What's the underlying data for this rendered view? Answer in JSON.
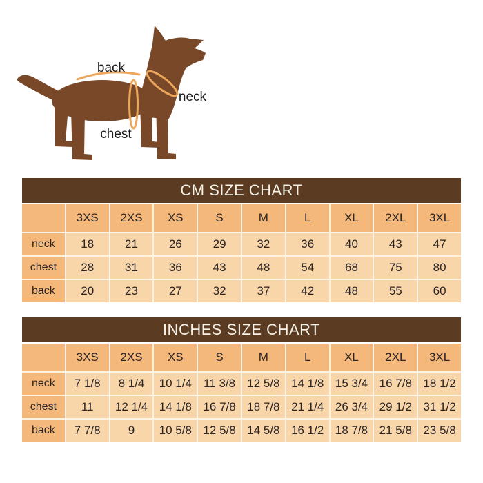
{
  "colors": {
    "title_bar": "#5b3c23",
    "title_text": "#f6f1e7",
    "header_cell": "#f4b87a",
    "data_cell": "#f8d6a9",
    "cell_text": "#2b2426",
    "grid_line": "#fcf3e3",
    "dog_body": "#784829",
    "measure_line": "#eda65a",
    "diagram_label": "#1c1c1c"
  },
  "diagram": {
    "back_label": "back",
    "neck_label": "neck",
    "chest_label": "chest"
  },
  "chart_data": [
    {
      "type": "table",
      "title": "CM SIZE CHART",
      "unit": "cm",
      "size_columns": [
        "3XS",
        "2XS",
        "XS",
        "S",
        "M",
        "L",
        "XL",
        "2XL",
        "3XL"
      ],
      "rows": [
        {
          "label": "neck",
          "values": [
            "18",
            "21",
            "26",
            "29",
            "32",
            "36",
            "40",
            "43",
            "47"
          ]
        },
        {
          "label": "chest",
          "values": [
            "28",
            "31",
            "36",
            "43",
            "48",
            "54",
            "68",
            "75",
            "80"
          ]
        },
        {
          "label": "back",
          "values": [
            "20",
            "23",
            "27",
            "32",
            "37",
            "42",
            "48",
            "55",
            "60"
          ]
        }
      ]
    },
    {
      "type": "table",
      "title": "INCHES SIZE CHART",
      "unit": "inches",
      "size_columns": [
        "3XS",
        "2XS",
        "XS",
        "S",
        "M",
        "L",
        "XL",
        "2XL",
        "3XL"
      ],
      "rows": [
        {
          "label": "neck",
          "values": [
            "7 1/8",
            "8 1/4",
            "10 1/4",
            "11 3/8",
            "12 5/8",
            "14 1/8",
            "15 3/4",
            "16 7/8",
            "18 1/2"
          ]
        },
        {
          "label": "chest",
          "values": [
            "11",
            "12 1/4",
            "14 1/8",
            "16 7/8",
            "18 7/8",
            "21 1/4",
            "26 3/4",
            "29 1/2",
            "31 1/2"
          ]
        },
        {
          "label": "back",
          "values": [
            "7 7/8",
            "9",
            "10 5/8",
            "12 5/8",
            "14 5/8",
            "16 1/2",
            "18 7/8",
            "21 5/8",
            "23 5/8"
          ]
        }
      ]
    }
  ]
}
